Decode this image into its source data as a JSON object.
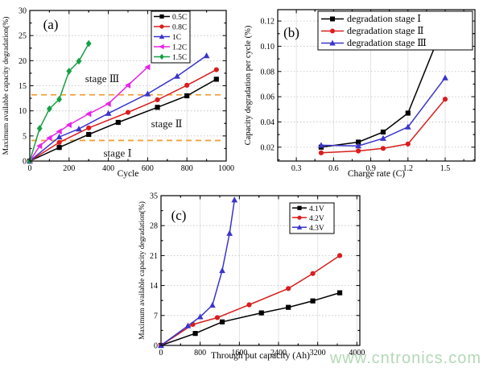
{
  "figure": {
    "background": "#ffffff",
    "watermark": {
      "text": "www.cntronics.com",
      "color": "#abd5ad"
    }
  },
  "chart_data": [
    {
      "panel_label": "(a)",
      "type": "line",
      "xlabel": "Cycle",
      "ylabel": "Maximum available capacity degradation(%)",
      "xlim": [
        0,
        1000
      ],
      "ylim": [
        0,
        30
      ],
      "xticks": [
        0,
        200,
        400,
        600,
        800,
        1000
      ],
      "xtick_labels": [
        "0",
        "200",
        "400",
        "600",
        "800",
        "1000"
      ],
      "yticks": [
        0,
        5,
        10,
        15,
        20,
        25,
        30
      ],
      "ytick_labels": [
        "0",
        "5",
        "10",
        "15",
        "20",
        "25",
        "30"
      ],
      "grid": true,
      "legend_position": "top-right",
      "series": [
        {
          "name": "0.5C",
          "color": "#000000",
          "marker": "square",
          "x": [
            0,
            150,
            300,
            450,
            650,
            800,
            950
          ],
          "y": [
            0,
            2.7,
            5.3,
            7.7,
            10.7,
            13.0,
            16.3
          ]
        },
        {
          "name": "0.8C",
          "color": "#d91e1e",
          "marker": "circle",
          "x": [
            0,
            150,
            300,
            500,
            650,
            800,
            950
          ],
          "y": [
            0,
            3.7,
            6.6,
            9.7,
            12.2,
            15.1,
            18.2
          ]
        },
        {
          "name": "1C",
          "color": "#3a35cb",
          "marker": "triangle",
          "x": [
            0,
            150,
            250,
            400,
            600,
            750,
            900
          ],
          "y": [
            0,
            4.8,
            6.4,
            9.5,
            13.4,
            16.9,
            21.0
          ]
        },
        {
          "name": "1.2C",
          "color": "#e823e8",
          "marker": "triangle-left",
          "x": [
            0,
            50,
            100,
            150,
            200,
            300,
            400,
            500,
            600
          ],
          "y": [
            0,
            3.0,
            4.6,
            5.9,
            7.2,
            9.4,
            11.4,
            15.1,
            18.7
          ]
        },
        {
          "name": "1.5C",
          "color": "#16a045",
          "marker": "diamond",
          "x": [
            0,
            50,
            100,
            150,
            200,
            250,
            300
          ],
          "y": [
            0,
            6.5,
            10.4,
            12.3,
            17.9,
            19.9,
            23.4
          ]
        }
      ],
      "annotations": {
        "hline_color": "#f0a03c",
        "hlines": [
          {
            "y": 4.1
          },
          {
            "y": 13.2
          }
        ],
        "labels": [
          {
            "text": "stage Ⅰ",
            "x": 447,
            "y": 0.9
          },
          {
            "text": "stage Ⅱ",
            "x": 697,
            "y": 6.7
          },
          {
            "text": "stage Ⅲ",
            "x": 369,
            "y": 15.7
          }
        ]
      }
    },
    {
      "panel_label": "(b)",
      "type": "line",
      "xlabel": "Charge rate (C)",
      "ylabel": "Capacity degradation per cycle (%)",
      "xlim": [
        0.15,
        1.74
      ],
      "ylim": [
        0.009,
        0.129
      ],
      "xticks": [
        0.3,
        0.6,
        0.9,
        1.2,
        1.5
      ],
      "xtick_labels": [
        "0.3",
        "0.6",
        "0.9",
        "1.2",
        "1.5"
      ],
      "yticks": [
        0.02,
        0.04,
        0.06,
        0.08,
        0.1,
        0.12
      ],
      "ytick_labels": [
        "0.02",
        "0.04",
        "0.06",
        "0.08",
        "0.10",
        "0.12"
      ],
      "grid": true,
      "legend_position": "top",
      "series": [
        {
          "name": "degradation stage Ⅰ",
          "color": "#000000",
          "marker": "square",
          "x": [
            0.5,
            0.8,
            1.0,
            1.2,
            1.5
          ],
          "y": [
            0.02,
            0.024,
            0.032,
            0.047,
            0.12
          ]
        },
        {
          "name": "degradation stage Ⅱ",
          "color": "#d91e1e",
          "marker": "circle",
          "x": [
            0.5,
            0.8,
            1.0,
            1.2,
            1.5
          ],
          "y": [
            0.0155,
            0.017,
            0.019,
            0.0225,
            0.058
          ]
        },
        {
          "name": "degradation stage Ⅲ",
          "color": "#3a35cb",
          "marker": "triangle",
          "x": [
            0.5,
            0.8,
            1.0,
            1.2,
            1.5
          ],
          "y": [
            0.0215,
            0.021,
            0.027,
            0.036,
            0.075
          ]
        }
      ]
    },
    {
      "panel_label": "(c)",
      "type": "line",
      "xlabel": "Through put capacity (Ah)",
      "ylabel": "Maximum available capacity degradation(%)",
      "xlim": [
        0,
        4060
      ],
      "ylim": [
        0,
        35
      ],
      "xticks": [
        0,
        800,
        1600,
        2400,
        3200,
        4000
      ],
      "xtick_labels": [
        "0",
        "800",
        "1600",
        "2400",
        "3200",
        "4000"
      ],
      "yticks": [
        0,
        7,
        14,
        21,
        28,
        35
      ],
      "ytick_labels": [
        "0",
        "7",
        "14",
        "21",
        "28",
        "35"
      ],
      "grid": true,
      "legend_position": "top-right",
      "series": [
        {
          "name": "4.1V",
          "color": "#000000",
          "marker": "square",
          "x": [
            0,
            700,
            1250,
            2050,
            2600,
            3100,
            3650
          ],
          "y": [
            0,
            2.8,
            5.5,
            7.6,
            8.9,
            10.4,
            12.3
          ]
        },
        {
          "name": "4.2V",
          "color": "#d91e1e",
          "marker": "circle",
          "x": [
            0,
            650,
            1150,
            1800,
            2600,
            3100,
            3650
          ],
          "y": [
            0,
            4.9,
            6.5,
            9.5,
            13.3,
            16.8,
            21.0
          ]
        },
        {
          "name": "4.3V",
          "color": "#3a35cb",
          "marker": "triangle",
          "x": [
            0,
            550,
            800,
            1050,
            1250,
            1400,
            1500
          ],
          "y": [
            0,
            4.6,
            6.7,
            9.4,
            17.5,
            26.2,
            34.0
          ]
        }
      ]
    }
  ]
}
